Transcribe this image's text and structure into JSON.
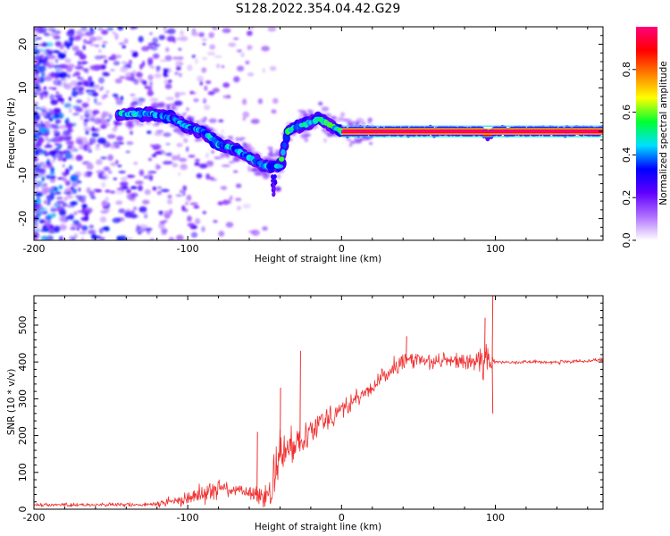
{
  "figure_title": "S128.2022.354.04.42.G29",
  "chart_data": [
    {
      "type": "heatmap",
      "title": "",
      "xlabel": "Height of straight line (km)",
      "ylabel": "Frequency (Hz)",
      "xlim": [
        -200,
        170
      ],
      "ylim": [
        -25,
        24
      ],
      "x_ticks": [
        -200,
        -100,
        0,
        100
      ],
      "y_ticks": [
        -20,
        -10,
        0,
        10,
        20
      ],
      "colorbar": {
        "label": "Normalized spectral amplitude",
        "range": [
          0.0,
          1.0
        ],
        "ticks": [
          0.0,
          0.2,
          0.4,
          0.6,
          0.8
        ],
        "tick_labels": [
          "0.0",
          "0.2",
          "0.4",
          "0.6",
          "0.8"
        ],
        "colormap": [
          "#ffffff",
          "#b070ff",
          "#6000ff",
          "#0000ff",
          "#00e0ff",
          "#00ff30",
          "#ffff00",
          "#ff8000",
          "#ff0000",
          "#ff007a"
        ]
      },
      "ridge": {
        "x": [
          -140,
          -125,
          -110,
          -100,
          -90,
          -80,
          -70,
          -60,
          -50,
          -40,
          -35,
          -30,
          -20,
          -15,
          -10,
          0,
          10,
          30,
          60,
          90,
          95,
          100,
          170
        ],
        "frequency": [
          4,
          4,
          3,
          1,
          0,
          -3,
          -4,
          -6,
          -8,
          -8,
          0,
          1,
          2,
          3,
          2,
          0,
          0,
          0,
          0,
          0,
          -1,
          0,
          0
        ],
        "peak_amplitude_after_x": 0,
        "peak_amplitude": 1.0
      },
      "noise_region_x_max": -100
    },
    {
      "type": "line",
      "title": "",
      "xlabel": "Height of straight line (km)",
      "ylabel": "SNR (10 * v/v)",
      "xlim": [
        -200,
        170
      ],
      "ylim": [
        0,
        580
      ],
      "x_ticks": [
        -200,
        -100,
        0,
        100
      ],
      "y_ticks": [
        0,
        100,
        200,
        300,
        400,
        500
      ],
      "line_color": "#f03030",
      "series": [
        {
          "x": [
            -200,
            -150,
            -125,
            -110,
            -100,
            -90,
            -80,
            -70,
            -60,
            -50,
            -45,
            -40,
            -30,
            -20,
            -10,
            0,
            10,
            20,
            30,
            40,
            50,
            60,
            70,
            80,
            90,
            95,
            100,
            110,
            130,
            150,
            170
          ],
          "values": [
            12,
            12,
            12,
            20,
            30,
            45,
            60,
            50,
            45,
            30,
            60,
            140,
            180,
            220,
            250,
            270,
            300,
            330,
            370,
            400,
            410,
            400,
            405,
            400,
            400,
            400,
            400,
            400,
            400,
            400,
            405
          ],
          "spread": [
            8,
            8,
            10,
            20,
            30,
            40,
            40,
            25,
            25,
            60,
            80,
            100,
            70,
            70,
            60,
            50,
            40,
            30,
            35,
            40,
            40,
            30,
            30,
            30,
            60,
            80,
            8,
            8,
            8,
            8,
            8
          ]
        }
      ],
      "spikes": [
        {
          "x": -27,
          "y": 430
        },
        {
          "x": -40,
          "y": 330
        },
        {
          "x": -55,
          "y": 210
        },
        {
          "x": 42,
          "y": 470
        },
        {
          "x": 98,
          "y": 580
        },
        {
          "x": 93,
          "y": 520
        },
        {
          "x": 98,
          "y": 260
        }
      ]
    }
  ]
}
